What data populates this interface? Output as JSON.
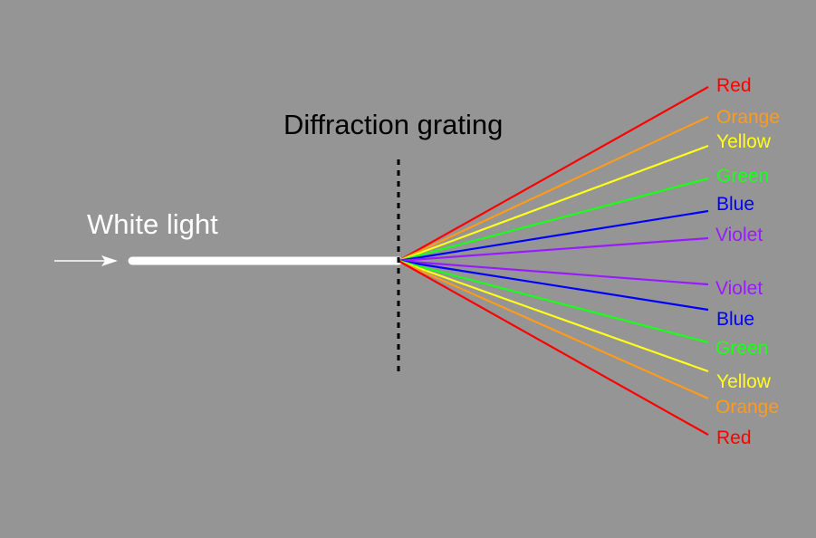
{
  "labels": {
    "grating": "Diffraction grating",
    "white_light": "White light"
  },
  "colors": {
    "background": "#959595",
    "white": "#ffffff",
    "grating": "#000000"
  },
  "rays": [
    {
      "label": "Red",
      "color": "#ff0000"
    },
    {
      "label": "Orange",
      "color": "#ff9a1a"
    },
    {
      "label": "Yellow",
      "color": "#ffff1a"
    },
    {
      "label": "Green",
      "color": "#1aff1a"
    },
    {
      "label": "Blue",
      "color": "#0000ff"
    },
    {
      "label": "Violet",
      "color": "#9a1aff"
    },
    {
      "label": "Violet",
      "color": "#9a1aff"
    },
    {
      "label": "Blue",
      "color": "#0000ff"
    },
    {
      "label": "Green",
      "color": "#1aff1a"
    },
    {
      "label": "Yellow",
      "color": "#ffff1a"
    },
    {
      "label": "Orange",
      "color": "#ff9a1a"
    },
    {
      "label": "Red",
      "color": "#ff0000"
    }
  ]
}
